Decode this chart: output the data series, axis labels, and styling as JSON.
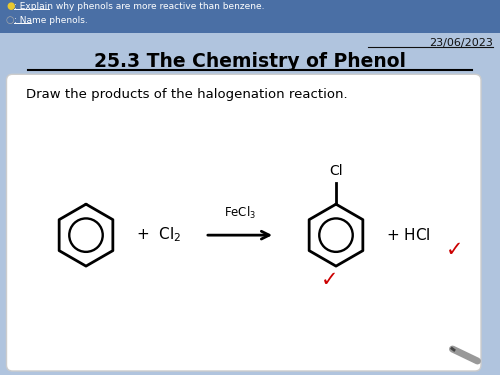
{
  "bg_color": "#b0c4de",
  "header_color": "#4a6fa5",
  "header_bullet1_color": "#e8c830",
  "header_bullet2_color": "#aaaaaa",
  "date_text": "23/06/2023",
  "title_text": "25.3 The Chemistry of Phenol",
  "card_question": "Draw the products of the halogenation reaction.",
  "check_color": "#cc0000",
  "header_line1": ": Explain why phenols are more reactive than benzene.",
  "header_line2": ": Name phenols.",
  "header_underline1_end": "Explain",
  "header_underline2_end": "Name"
}
